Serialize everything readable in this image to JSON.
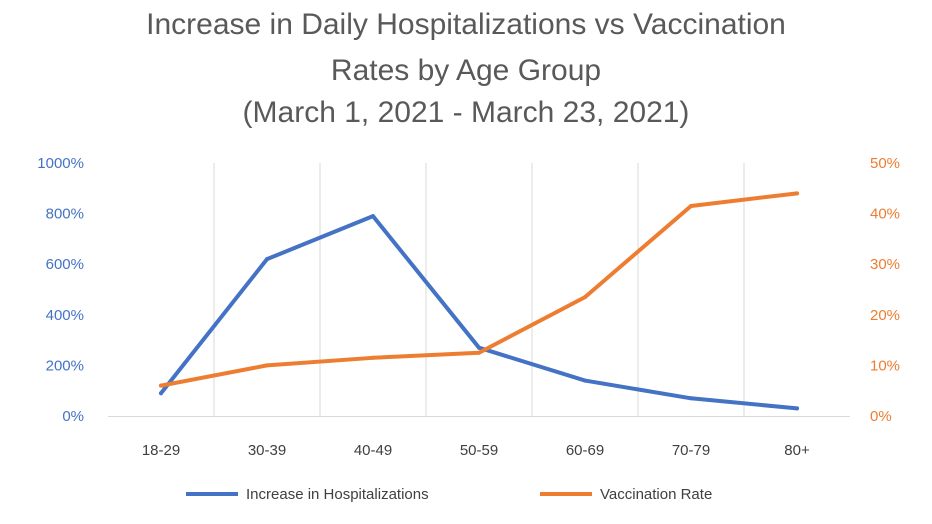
{
  "chart_data": {
    "type": "line",
    "title_lines": [
      "Increase in Daily Hospitalizations vs Vaccination",
      "Rates by Age Group",
      "(March 1, 2021 - March 23, 2021)"
    ],
    "categories": [
      "18-29",
      "30-39",
      "40-49",
      "50-59",
      "60-69",
      "70-79",
      "80+"
    ],
    "y_left": {
      "min": 0,
      "max": 1000,
      "step": 200,
      "tick_labels": [
        "0%",
        "200%",
        "400%",
        "600%",
        "800%",
        "1000%"
      ],
      "color": "#4472C4"
    },
    "y_right": {
      "min": 0,
      "max": 50,
      "step": 10,
      "tick_labels": [
        "0%",
        "10%",
        "20%",
        "30%",
        "40%",
        "50%"
      ],
      "color": "#ED7D31"
    },
    "series": [
      {
        "name": "Increase in Hospitalizations",
        "axis": "left",
        "color": "#4472C4",
        "values": [
          90,
          620,
          790,
          270,
          140,
          70,
          30
        ]
      },
      {
        "name": "Vaccination Rate",
        "axis": "right",
        "color": "#ED7D31",
        "values": [
          6,
          10,
          11.5,
          12.5,
          23.5,
          41.5,
          44
        ]
      }
    ],
    "vertical_gridlines": true,
    "legend_position": "bottom"
  }
}
